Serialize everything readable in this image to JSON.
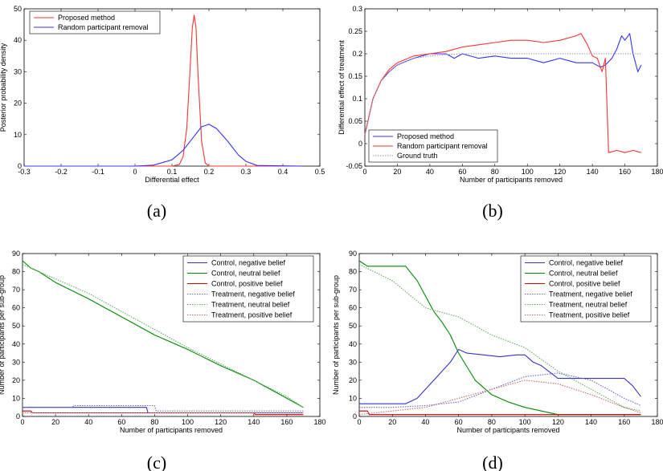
{
  "chart_data": [
    {
      "panel": "(a)",
      "type": "line",
      "xlabel": "Differential effect",
      "ylabel": "Posterior probability density",
      "xlim": [
        -0.3,
        0.5
      ],
      "ylim": [
        0,
        50
      ],
      "xticks": [
        -0.3,
        -0.2,
        -0.1,
        0,
        0.1,
        0.2,
        0.3,
        0.4,
        0.5
      ],
      "yticks": [
        0,
        10,
        20,
        30,
        40,
        50
      ],
      "legend_position": "top-left",
      "series": [
        {
          "name": "Proposed method",
          "color": "#ff3333",
          "style": "solid",
          "x": [
            -0.3,
            0.1,
            0.12,
            0.13,
            0.14,
            0.15,
            0.155,
            0.16,
            0.165,
            0.17,
            0.18,
            0.19,
            0.2,
            0.45
          ],
          "y": [
            0,
            0,
            0.5,
            3,
            12,
            33,
            44,
            48,
            44,
            30,
            8,
            1,
            0,
            0
          ]
        },
        {
          "name": "Random participant removal",
          "color": "#3333ff",
          "style": "solid",
          "x": [
            -0.3,
            0.0,
            0.05,
            0.1,
            0.13,
            0.16,
            0.18,
            0.2,
            0.22,
            0.25,
            0.28,
            0.3,
            0.33,
            0.45
          ],
          "y": [
            0,
            0,
            0.3,
            2,
            5,
            9.5,
            12.5,
            13.3,
            12,
            8,
            3.5,
            1.5,
            0.2,
            0
          ]
        }
      ]
    },
    {
      "panel": "(b)",
      "type": "line",
      "xlabel": "Number of participants removed",
      "ylabel": "Differential effect of treatment",
      "xlim": [
        0,
        180
      ],
      "ylim": [
        -0.05,
        0.3
      ],
      "xticks": [
        0,
        20,
        40,
        60,
        80,
        100,
        120,
        140,
        160,
        180
      ],
      "yticks": [
        -0.05,
        0,
        0.05,
        0.1,
        0.15,
        0.2,
        0.25,
        0.3
      ],
      "legend_position": "bottom-left",
      "series": [
        {
          "name": "Proposed method",
          "color": "#3333ff",
          "style": "solid",
          "x": [
            0,
            5,
            10,
            15,
            20,
            30,
            40,
            50,
            55,
            60,
            70,
            80,
            90,
            100,
            110,
            120,
            130,
            140,
            145,
            148,
            152,
            155,
            158,
            160,
            163,
            165,
            168,
            170
          ],
          "y": [
            0.02,
            0.1,
            0.14,
            0.16,
            0.175,
            0.19,
            0.2,
            0.2,
            0.19,
            0.2,
            0.19,
            0.195,
            0.19,
            0.19,
            0.18,
            0.19,
            0.18,
            0.18,
            0.17,
            0.175,
            0.19,
            0.21,
            0.24,
            0.23,
            0.245,
            0.2,
            0.16,
            0.175
          ]
        },
        {
          "name": "Random participant removal",
          "color": "#ff3333",
          "style": "solid",
          "x": [
            0,
            5,
            10,
            15,
            20,
            30,
            40,
            50,
            60,
            70,
            80,
            90,
            100,
            110,
            120,
            130,
            133,
            137,
            140,
            143,
            146,
            148,
            150,
            155,
            160,
            165,
            170
          ],
          "y": [
            0.02,
            0.1,
            0.14,
            0.165,
            0.18,
            0.195,
            0.2,
            0.205,
            0.215,
            0.22,
            0.225,
            0.23,
            0.23,
            0.225,
            0.23,
            0.24,
            0.245,
            0.22,
            0.195,
            0.19,
            0.16,
            0.19,
            -0.02,
            -0.015,
            -0.02,
            -0.015,
            -0.02
          ]
        },
        {
          "name": "Ground truth",
          "color": "#999999",
          "style": "dotted",
          "x": [
            0,
            5,
            10,
            15,
            20,
            30,
            40,
            50,
            60,
            80,
            100,
            120,
            140,
            160,
            170
          ],
          "y": [
            0.02,
            0.1,
            0.14,
            0.16,
            0.175,
            0.19,
            0.195,
            0.198,
            0.2,
            0.2,
            0.2,
            0.2,
            0.2,
            0.2,
            0.2
          ]
        }
      ]
    },
    {
      "panel": "(c)",
      "type": "line",
      "xlabel": "Number of participants removed",
      "ylabel": "Number of participants per sub-group",
      "xlim": [
        0,
        180
      ],
      "ylim": [
        0,
        90
      ],
      "xticks": [
        0,
        20,
        40,
        60,
        80,
        100,
        120,
        140,
        160,
        180
      ],
      "yticks": [
        0,
        10,
        20,
        30,
        40,
        50,
        60,
        70,
        80,
        90
      ],
      "legend_position": "top-right",
      "series": [
        {
          "name": "Control, negative belief",
          "color": "#3333cc",
          "style": "solid",
          "x": [
            0,
            75,
            76,
            170
          ],
          "y": [
            5,
            5,
            2,
            2
          ]
        },
        {
          "name": "Control, neutral belief",
          "color": "#008800",
          "style": "solid",
          "x": [
            0,
            5,
            10,
            20,
            40,
            60,
            80,
            100,
            120,
            140,
            160,
            170
          ],
          "y": [
            86,
            82,
            80,
            74,
            65,
            55,
            45,
            37,
            28,
            20,
            10,
            5
          ]
        },
        {
          "name": "Control, positive belief",
          "color": "#cc0000",
          "style": "solid",
          "x": [
            0,
            5,
            6,
            140,
            141,
            170
          ],
          "y": [
            3,
            3,
            2,
            2,
            1,
            1
          ]
        },
        {
          "name": "Treatment, negative belief",
          "color": "#6666cc",
          "style": "dotted",
          "x": [
            0,
            30,
            31,
            80,
            81,
            170
          ],
          "y": [
            5,
            5,
            6,
            6,
            3,
            3
          ]
        },
        {
          "name": "Treatment, neutral belief",
          "color": "#66aa66",
          "style": "dotted",
          "x": [
            0,
            20,
            40,
            60,
            80,
            100,
            120,
            140,
            160,
            170
          ],
          "y": [
            84,
            76,
            68,
            58,
            48,
            38,
            29,
            20,
            11,
            5
          ]
        },
        {
          "name": "Treatment, positive belief",
          "color": "#cc6666",
          "style": "dotted",
          "x": [
            0,
            170
          ],
          "y": [
            2,
            2
          ]
        }
      ]
    },
    {
      "panel": "(d)",
      "type": "line",
      "xlabel": "Number of participants removed",
      "ylabel": "Number of participants per sub-group",
      "xlim": [
        0,
        180
      ],
      "ylim": [
        0,
        90
      ],
      "xticks": [
        0,
        20,
        40,
        60,
        80,
        100,
        120,
        140,
        160,
        180
      ],
      "yticks": [
        0,
        10,
        20,
        30,
        40,
        50,
        60,
        70,
        80,
        90
      ],
      "legend_position": "top-right",
      "series": [
        {
          "name": "Control, negative belief",
          "color": "#3333cc",
          "style": "solid",
          "x": [
            0,
            5,
            28,
            35,
            45,
            55,
            60,
            65,
            75,
            85,
            95,
            100,
            105,
            110,
            120,
            140,
            160,
            165,
            170
          ],
          "y": [
            7,
            7,
            7,
            10,
            20,
            30,
            37,
            35,
            34,
            33,
            34,
            34,
            30,
            28,
            21,
            21,
            21,
            17,
            11
          ]
        },
        {
          "name": "Control, neutral belief",
          "color": "#008800",
          "style": "solid",
          "x": [
            0,
            5,
            10,
            28,
            35,
            45,
            50,
            55,
            60,
            70,
            80,
            90,
            100,
            110,
            120,
            170
          ],
          "y": [
            86,
            83,
            83,
            83,
            75,
            58,
            52,
            45,
            35,
            20,
            12,
            8,
            5,
            3,
            1,
            1
          ]
        },
        {
          "name": "Control, positive belief",
          "color": "#cc0000",
          "style": "solid",
          "x": [
            0,
            5,
            6,
            170
          ],
          "y": [
            3,
            3,
            1,
            1
          ]
        },
        {
          "name": "Treatment, negative belief",
          "color": "#6666cc",
          "style": "dotted",
          "x": [
            0,
            20,
            40,
            60,
            80,
            100,
            120,
            140,
            160,
            170
          ],
          "y": [
            5,
            5,
            6,
            8,
            15,
            22,
            24,
            20,
            10,
            6
          ]
        },
        {
          "name": "Treatment, neutral belief",
          "color": "#66aa66",
          "style": "dotted",
          "x": [
            0,
            20,
            40,
            60,
            70,
            80,
            100,
            120,
            140,
            160,
            170
          ],
          "y": [
            84,
            75,
            60,
            55,
            50,
            45,
            38,
            25,
            15,
            5,
            3
          ]
        },
        {
          "name": "Treatment, positive belief",
          "color": "#cc6666",
          "style": "dotted",
          "x": [
            0,
            20,
            40,
            60,
            80,
            100,
            120,
            140,
            160,
            170
          ],
          "y": [
            1,
            3,
            5,
            10,
            15,
            20,
            18,
            12,
            5,
            2
          ]
        }
      ]
    }
  ]
}
